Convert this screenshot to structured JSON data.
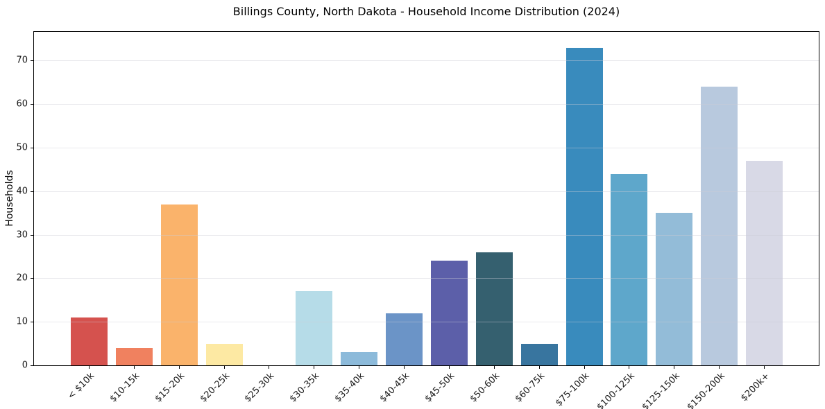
{
  "chart_data": {
    "type": "bar",
    "title": "Billings County, North Dakota - Household Income Distribution (2024)",
    "xlabel": "",
    "ylabel": "Households",
    "categories": [
      "< $10k",
      "$10-15k",
      "$15-20k",
      "$20-25k",
      "$25-30k",
      "$30-35k",
      "$35-40k",
      "$40-45k",
      "$45-50k",
      "$50-60k",
      "$60-75k",
      "$75-100k",
      "$100-125k",
      "$125-150k",
      "$150-200k",
      "$200k+"
    ],
    "values": [
      11,
      4,
      37,
      5,
      0,
      17,
      3,
      12,
      24,
      26,
      5,
      73,
      44,
      35,
      64,
      47
    ],
    "bar_colors": [
      "#d5524e",
      "#f0815f",
      "#fab36b",
      "#fde9a3",
      "#ffffff",
      "#b6dce8",
      "#8cbada",
      "#6b94c7",
      "#5c5fa9",
      "#35606f",
      "#38759f",
      "#398bbd",
      "#5ea7cb",
      "#93bcd8",
      "#b8c9de",
      "#d8d9e6"
    ],
    "yticks": [
      0,
      10,
      20,
      30,
      40,
      50,
      60,
      70
    ],
    "ylim": [
      0,
      76.6
    ],
    "grid": "horizontal",
    "legend": "none",
    "background_color": "#ffffff",
    "spine_color": "#000000",
    "gridline_color": "#eaeaea",
    "tick_label_color": "#1a1a1a"
  }
}
